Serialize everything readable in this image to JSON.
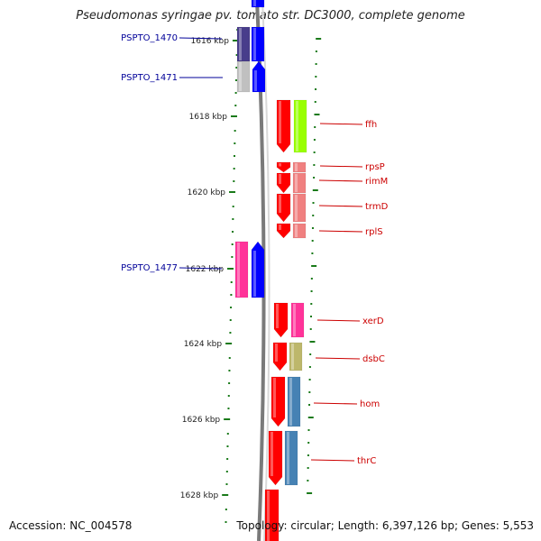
{
  "title": "Pseudomonas syringae pv. tomato str. DC3000, complete genome",
  "footer": {
    "accession": "Accession: NC_004578",
    "topology": "Topology: circular; Length: 6,397,126 bp; Genes: 5,553"
  },
  "scale_labels": [
    "1616 kbp",
    "1618 kbp",
    "1620 kbp",
    "1622 kbp",
    "1624 kbp",
    "1626 kbp",
    "1628 kbp"
  ],
  "left_features": [
    {
      "label": "PSPTO_1470",
      "kind": "locus",
      "color": "#000099"
    },
    {
      "label": "PSPTO_1471",
      "kind": "locus",
      "color": "#000099"
    },
    {
      "label": "PSPTO_1477",
      "kind": "locus",
      "color": "#000099"
    }
  ],
  "right_features": [
    {
      "label": "ffh",
      "kind": "gene",
      "color": "#cc0000"
    },
    {
      "label": "rpsP",
      "kind": "gene",
      "color": "#cc0000"
    },
    {
      "label": "rimM",
      "kind": "gene",
      "color": "#cc0000"
    },
    {
      "label": "trmD",
      "kind": "gene",
      "color": "#cc0000"
    },
    {
      "label": "rplS",
      "kind": "gene",
      "color": "#cc0000"
    },
    {
      "label": "xerD",
      "kind": "gene",
      "color": "#cc0000"
    },
    {
      "label": "dsbC",
      "kind": "gene",
      "color": "#cc0000"
    },
    {
      "label": "hom",
      "kind": "gene",
      "color": "#cc0000"
    },
    {
      "label": "thrC",
      "kind": "gene",
      "color": "#cc0000"
    }
  ],
  "colors": {
    "backbone": "#7a7a7a",
    "tick": "#1a7a1a",
    "strand_arrow": "#ff0000",
    "minus_arrow": "#0000ff",
    "cog_green": "#99ff00",
    "cog_salmon": "#f08080",
    "cog_pink": "#ff3399",
    "cog_olive": "#bdb76b",
    "cog_steel": "#4682b4",
    "cog_slate": "#483d8b",
    "cog_gray": "#c0c0c0"
  }
}
